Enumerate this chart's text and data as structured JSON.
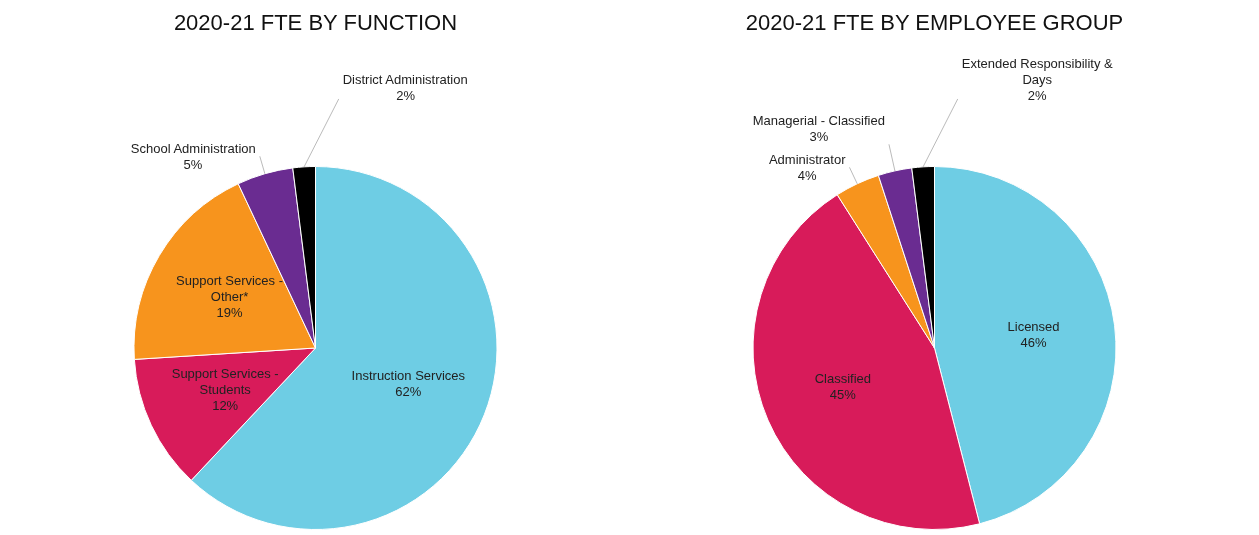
{
  "chart_data": [
    {
      "type": "pie",
      "title": "2020-21 FTE BY FUNCTION",
      "categories": [
        "Instruction Services",
        "Support Services - Students",
        "Support Services - Other*",
        "School Administration",
        "District Administration"
      ],
      "values": [
        62,
        12,
        19,
        5,
        2
      ],
      "colors": [
        "#6ecde4",
        "#d81b5a",
        "#f7941d",
        "#6a2c91",
        "#000000"
      ],
      "value_labels": [
        "62%",
        "12%",
        "19%",
        "5%",
        "2%"
      ]
    },
    {
      "type": "pie",
      "title": "2020-21 FTE BY EMPLOYEE GROUP",
      "categories": [
        "Licensed",
        "Classified",
        "Administrator",
        "Managerial - Classified",
        "Extended Responsibility & Days"
      ],
      "values": [
        46,
        45,
        4,
        3,
        2
      ],
      "colors": [
        "#6ecde4",
        "#d81b5a",
        "#f7941d",
        "#6a2c91",
        "#000000"
      ],
      "value_labels": [
        "46%",
        "45%",
        "4%",
        "3%",
        "2%"
      ]
    }
  ]
}
